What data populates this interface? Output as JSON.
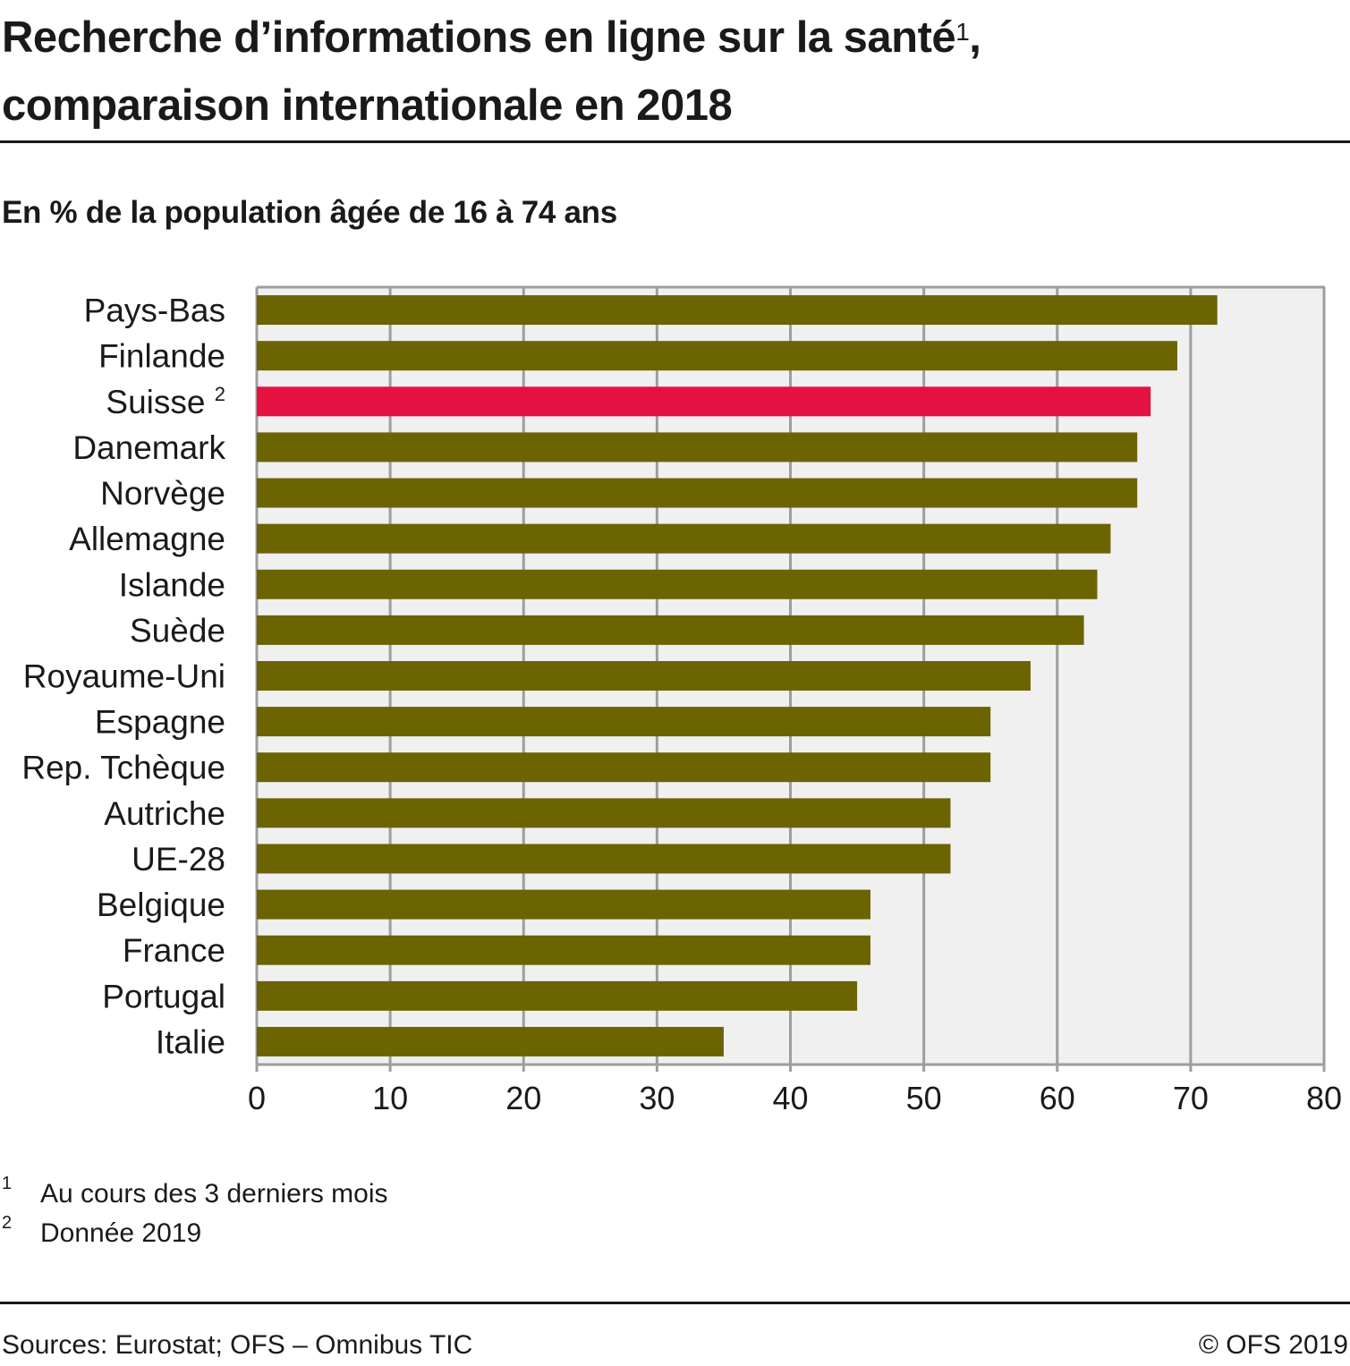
{
  "header": {
    "title_line1": "Recherche d’informations en ligne sur la santé",
    "title_sup": "1",
    "title_line1_end": ",",
    "title_line2": "comparaison internationale en 2018",
    "subtitle": "En % de la population âgée de 16 à 74 ans"
  },
  "colors": {
    "bar_default": "#6b6400",
    "bar_highlight": "#e51140",
    "plot_background": "#f0f0f0",
    "grid": "#9e9e9e"
  },
  "chart_data": {
    "type": "bar",
    "orientation": "horizontal",
    "title": "Recherche d’informations en ligne sur la santé 1, comparaison internationale en 2018",
    "subtitle": "En % de la population âgée de 16 à 74 ans",
    "xlabel": "",
    "ylabel": "",
    "categories": [
      "Pays-Bas",
      "Finlande",
      "Suisse",
      "Danemark",
      "Norvège",
      "Allemagne",
      "Islande",
      "Suède",
      "Royaume-Uni",
      "Espagne",
      "Rep. Tchèque",
      "Autriche",
      "UE-28",
      "Belgique",
      "France",
      "Portugal",
      "Italie"
    ],
    "category_superscripts": {
      "Suisse": "2"
    },
    "values": [
      72,
      69,
      67,
      66,
      66,
      64,
      63,
      62,
      58,
      55,
      55,
      52,
      52,
      46,
      46,
      45,
      35
    ],
    "highlight": [
      "Suisse"
    ],
    "xlim": [
      0,
      80
    ],
    "xticks": [
      0,
      10,
      20,
      30,
      40,
      50,
      60,
      70,
      80
    ],
    "grid": "vertical"
  },
  "footnotes": [
    {
      "num": "1",
      "text": "Au cours des 3 derniers mois"
    },
    {
      "num": "2",
      "text": "Donnée 2019"
    }
  ],
  "footer": {
    "source": "Sources: Eurostat; OFS – Omnibus TIC",
    "copyright": "© OFS 2019"
  }
}
